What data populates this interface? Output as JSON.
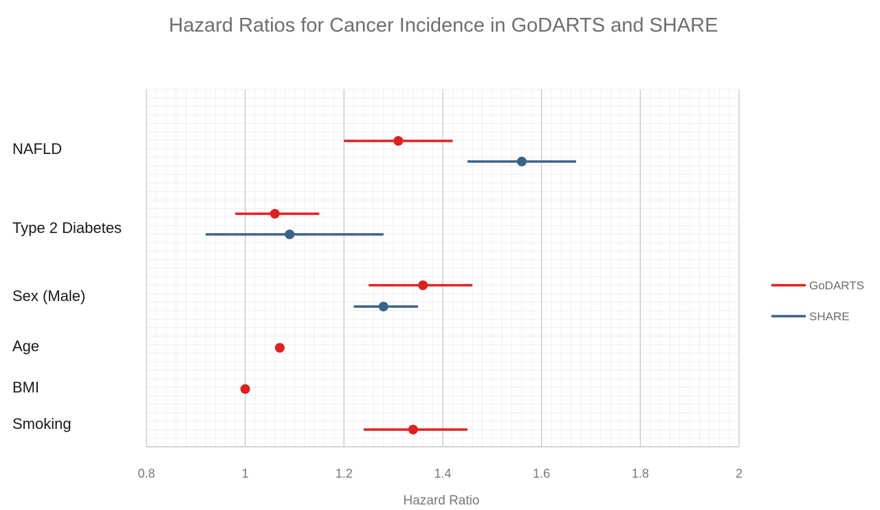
{
  "chart_data": {
    "type": "scatter",
    "subtype": "forest-plot",
    "title": "Hazard Ratios for Cancer Incidence in GoDARTS and SHARE",
    "xlabel": "Hazard Ratio",
    "ylabel": "",
    "xlim": [
      0.8,
      2
    ],
    "xticks": [
      "0.8",
      "1",
      "1.2",
      "1.4",
      "1.6",
      "1.8",
      "2"
    ],
    "grid": true,
    "legend_position": "right",
    "categories": [
      "NAFLD",
      "Type 2 Diabetes",
      "Sex (Male)",
      "Age",
      "BMI",
      "Smoking"
    ],
    "series": [
      {
        "name": "GoDARTS",
        "color": "#e02020",
        "points": [
          {
            "category": "NAFLD",
            "hr": 1.31,
            "lower": 1.2,
            "upper": 1.42
          },
          {
            "category": "Type 2 Diabetes",
            "hr": 1.06,
            "lower": 0.98,
            "upper": 1.15
          },
          {
            "category": "Sex (Male)",
            "hr": 1.36,
            "lower": 1.25,
            "upper": 1.46
          },
          {
            "category": "Age",
            "hr": 1.07,
            "lower": 1.07,
            "upper": 1.07
          },
          {
            "category": "BMI",
            "hr": 1.0,
            "lower": 1.0,
            "upper": 1.0
          },
          {
            "category": "Smoking",
            "hr": 1.34,
            "lower": 1.24,
            "upper": 1.45
          }
        ]
      },
      {
        "name": "SHARE",
        "color": "#3a6488",
        "points": [
          {
            "category": "NAFLD",
            "hr": 1.56,
            "lower": 1.45,
            "upper": 1.67
          },
          {
            "category": "Type 2 Diabetes",
            "hr": 1.09,
            "lower": 0.92,
            "upper": 1.28
          },
          {
            "category": "Sex (Male)",
            "hr": 1.28,
            "lower": 1.22,
            "upper": 1.35
          }
        ]
      }
    ]
  }
}
